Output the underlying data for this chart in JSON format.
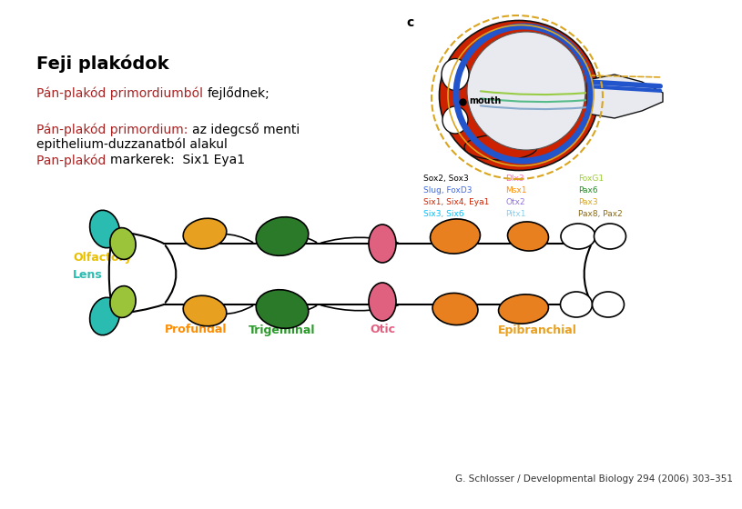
{
  "title": "Feji plakódok",
  "title_fontsize": 14,
  "title_bold": true,
  "title_color": "#000000",
  "background_color": "#ffffff",
  "citation": "G. Schlosser / Developmental Biology 294 (2006) 303–351",
  "citation_fontsize": 7.5,
  "text_line1_red": "Pán-plakód primordiumból ",
  "text_line1_black": "fejlődnek;",
  "text_line2_red": "Pán-plakód primordium: ",
  "text_line2_black": "az idegcső menti",
  "text_line3": "epithelium-duzzanatból alakul",
  "text_line4_red": "Pan-plakód ",
  "text_line4_black": "markerek:  Six1 Eya1",
  "text_fontsize": 10,
  "red_color": "#AA2222",
  "black_color": "#000000",
  "legend_items": [
    {
      "text": "Sox2, Sox3",
      "color": "#000000",
      "col": 0
    },
    {
      "text": "Slug, FoxD3",
      "color": "#4169E1",
      "col": 0
    },
    {
      "text": "Six1, Six4, Eya1",
      "color": "#CC2200",
      "col": 0
    },
    {
      "text": "Six3, Six6",
      "color": "#00BFFF",
      "col": 0
    },
    {
      "text": "Dlx3",
      "color": "#FF69B4",
      "col": 1
    },
    {
      "text": "Msx1",
      "color": "#FF8C00",
      "col": 1
    },
    {
      "text": "Otx2",
      "color": "#9370DB",
      "col": 1
    },
    {
      "text": "Pitx1",
      "color": "#87CEEB",
      "col": 1
    },
    {
      "text": "FoxG1",
      "color": "#9ACD32",
      "col": 2
    },
    {
      "text": "Pax6",
      "color": "#228B22",
      "col": 2
    },
    {
      "text": "Pax3",
      "color": "#DAA520",
      "col": 2
    },
    {
      "text": "Pax8, Pax2",
      "color": "#8B6914",
      "col": 2
    }
  ],
  "legend_fontsize": 6.5
}
